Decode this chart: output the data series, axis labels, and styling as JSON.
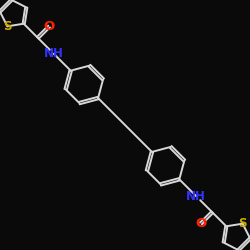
{
  "bg_color": "#0a0a0a",
  "bond_color": "#d8d8d8",
  "bond_width": 1.4,
  "O_color": "#ff2200",
  "N_color": "#3333ff",
  "S_color": "#ccaa00",
  "font_size": 8.5,
  "xlim": [
    -4.0,
    4.0
  ],
  "ylim": [
    -4.0,
    4.0
  ]
}
